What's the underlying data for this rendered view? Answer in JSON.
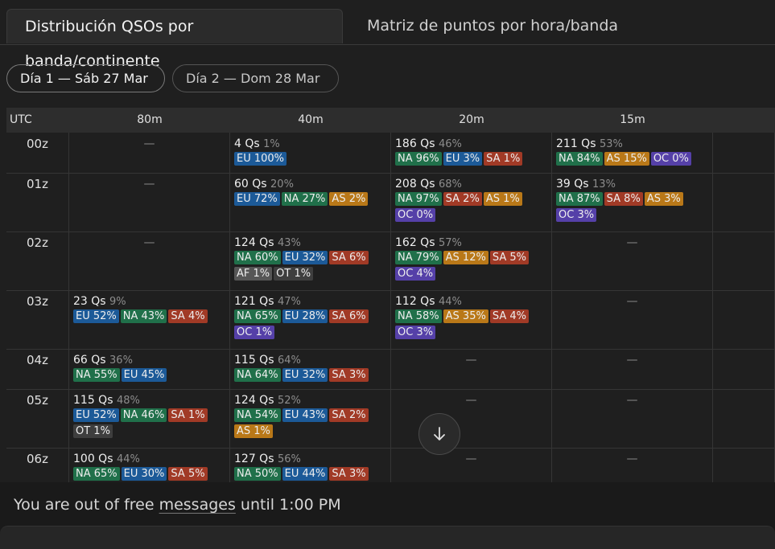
{
  "tabs": [
    {
      "label": "Distribución QSOs por banda/continente",
      "active": true
    },
    {
      "label": "Matriz de puntos por hora/banda",
      "active": false
    }
  ],
  "days": [
    {
      "label": "Día 1 — Sáb 27 Mar",
      "active": true
    },
    {
      "label": "Día 2 — Dom 28 Mar",
      "active": false
    }
  ],
  "table": {
    "headers": [
      "UTC",
      "80m",
      "40m",
      "20m",
      "15m",
      ""
    ],
    "rows": [
      {
        "utc": "00z",
        "cells": [
          null,
          {
            "count": "4 Qs",
            "pct": "1%",
            "badges": [
              {
                "c": "EU",
                "t": "EU 100%"
              }
            ]
          },
          {
            "count": "186 Qs",
            "pct": "46%",
            "badges": [
              {
                "c": "NA",
                "t": "NA 96%"
              },
              {
                "c": "EU",
                "t": "EU 3%"
              },
              {
                "c": "SA",
                "t": "SA 1%"
              }
            ]
          },
          {
            "count": "211 Qs",
            "pct": "53%",
            "badges": [
              {
                "c": "NA",
                "t": "NA 84%"
              },
              {
                "c": "AS",
                "t": "AS 15%"
              },
              {
                "c": "OC",
                "t": "OC 0%"
              }
            ]
          }
        ]
      },
      {
        "utc": "01z",
        "cells": [
          null,
          {
            "count": "60 Qs",
            "pct": "20%",
            "badges": [
              {
                "c": "EU",
                "t": "EU 72%"
              },
              {
                "c": "NA",
                "t": "NA 27%"
              },
              {
                "c": "AS",
                "t": "AS 2%"
              }
            ]
          },
          {
            "count": "208 Qs",
            "pct": "68%",
            "badges": [
              {
                "c": "NA",
                "t": "NA 97%"
              },
              {
                "c": "SA",
                "t": "SA 2%"
              },
              {
                "c": "AS",
                "t": "AS 1%"
              },
              {
                "c": "OC",
                "t": "OC 0%"
              }
            ]
          },
          {
            "count": "39 Qs",
            "pct": "13%",
            "badges": [
              {
                "c": "NA",
                "t": "NA 87%"
              },
              {
                "c": "SA",
                "t": "SA 8%"
              },
              {
                "c": "AS",
                "t": "AS 3%"
              },
              {
                "c": "OC",
                "t": "OC 3%"
              }
            ]
          }
        ]
      },
      {
        "utc": "02z",
        "cells": [
          null,
          {
            "count": "124 Qs",
            "pct": "43%",
            "badges": [
              {
                "c": "NA",
                "t": "NA 60%"
              },
              {
                "c": "EU",
                "t": "EU 32%"
              },
              {
                "c": "SA",
                "t": "SA 6%"
              },
              {
                "c": "AF",
                "t": "AF 1%"
              },
              {
                "c": "OT",
                "t": "OT 1%"
              }
            ]
          },
          {
            "count": "162 Qs",
            "pct": "57%",
            "badges": [
              {
                "c": "NA",
                "t": "NA 79%"
              },
              {
                "c": "AS",
                "t": "AS 12%"
              },
              {
                "c": "SA",
                "t": "SA 5%"
              },
              {
                "c": "OC",
                "t": "OC 4%"
              }
            ]
          },
          null
        ]
      },
      {
        "utc": "03z",
        "cells": [
          {
            "count": "23 Qs",
            "pct": "9%",
            "badges": [
              {
                "c": "EU",
                "t": "EU 52%"
              },
              {
                "c": "NA",
                "t": "NA 43%"
              },
              {
                "c": "SA",
                "t": "SA 4%"
              }
            ]
          },
          {
            "count": "121 Qs",
            "pct": "47%",
            "badges": [
              {
                "c": "NA",
                "t": "NA 65%"
              },
              {
                "c": "EU",
                "t": "EU 28%"
              },
              {
                "c": "SA",
                "t": "SA 6%"
              },
              {
                "c": "OC",
                "t": "OC 1%"
              }
            ]
          },
          {
            "count": "112 Qs",
            "pct": "44%",
            "badges": [
              {
                "c": "NA",
                "t": "NA 58%"
              },
              {
                "c": "AS",
                "t": "AS 35%"
              },
              {
                "c": "SA",
                "t": "SA 4%"
              },
              {
                "c": "OC",
                "t": "OC 3%"
              }
            ]
          },
          null
        ]
      },
      {
        "utc": "04z",
        "cells": [
          {
            "count": "66 Qs",
            "pct": "36%",
            "badges": [
              {
                "c": "NA",
                "t": "NA 55%"
              },
              {
                "c": "EU",
                "t": "EU 45%"
              }
            ]
          },
          {
            "count": "115 Qs",
            "pct": "64%",
            "badges": [
              {
                "c": "NA",
                "t": "NA 64%"
              },
              {
                "c": "EU",
                "t": "EU 32%"
              },
              {
                "c": "SA",
                "t": "SA 3%"
              }
            ]
          },
          null,
          null
        ]
      },
      {
        "utc": "05z",
        "cells": [
          {
            "count": "115 Qs",
            "pct": "48%",
            "badges": [
              {
                "c": "EU",
                "t": "EU 52%"
              },
              {
                "c": "NA",
                "t": "NA 46%"
              },
              {
                "c": "SA",
                "t": "SA 1%"
              },
              {
                "c": "OT",
                "t": "OT 1%"
              }
            ]
          },
          {
            "count": "124 Qs",
            "pct": "52%",
            "badges": [
              {
                "c": "NA",
                "t": "NA 54%"
              },
              {
                "c": "EU",
                "t": "EU 43%"
              },
              {
                "c": "SA",
                "t": "SA 2%"
              },
              {
                "c": "AS",
                "t": "AS 1%"
              }
            ]
          },
          null,
          null
        ]
      },
      {
        "utc": "06z",
        "cells": [
          {
            "count": "100 Qs",
            "pct": "44%",
            "badges": [
              {
                "c": "NA",
                "t": "NA 65%"
              },
              {
                "c": "EU",
                "t": "EU 30%"
              },
              {
                "c": "SA",
                "t": "SA 5%"
              }
            ]
          },
          {
            "count": "127 Qs",
            "pct": "56%",
            "badges": [
              {
                "c": "NA",
                "t": "NA 50%"
              },
              {
                "c": "EU",
                "t": "EU 44%"
              },
              {
                "c": "SA",
                "t": "SA 3%"
              }
            ]
          },
          null,
          null
        ]
      }
    ],
    "empty_symbol": "—"
  },
  "scroll_button": {
    "icon": "arrow-down-icon"
  },
  "notice": {
    "prefix": "You are out of free ",
    "link": "messages",
    "suffix": " until 1:00 PM"
  }
}
